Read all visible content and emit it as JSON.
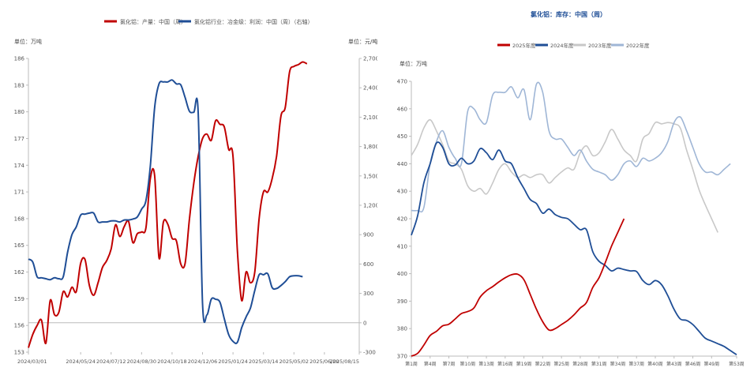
{
  "chart_data": [
    {
      "type": "line",
      "legend": [
        "氯化铝：产量：中国（周）",
        "氯化铝行业：冶金级：利润：中国（周）（右轴）"
      ],
      "legend_position": "top-center",
      "left_unit": "单位：万吨",
      "right_unit": "单位：元/吨",
      "ylim_left": [
        153,
        186
      ],
      "yticks_left": [
        "186",
        "183",
        "180",
        "177",
        "174",
        "171",
        "168",
        "165",
        "162",
        "159",
        "156",
        "153"
      ],
      "ylim_right": [
        -300,
        2700
      ],
      "yticks_right": [
        "2,700",
        "2,400",
        "2,100",
        "1,800",
        "1,500",
        "1,200",
        "900",
        "600",
        "300",
        "0",
        "-300"
      ],
      "xlim": [
        "2024-03-01",
        "2025-08-15"
      ],
      "xticks": [
        "2024/03/01",
        "2024/05/24",
        "2024/07/12",
        "2024/08/30",
        "2024/10/18",
        "2024/12/06",
        "2025/01/24",
        "2025/03/14",
        "2025/05/02",
        "2025/06/20",
        "2025/08/15"
      ],
      "grid": false,
      "colors": {
        "output": "#c00000",
        "profit": "#1f4e96"
      },
      "series": [
        {
          "name": "氯化铝：产量：中国（周）",
          "axis": "left",
          "points": [
            [
              "2024-03-01",
              153.5
            ],
            [
              "2024-03-08",
              155.0
            ],
            [
              "2024-03-15",
              156.0
            ],
            [
              "2024-03-22",
              156.6
            ],
            [
              "2024-03-29",
              154.0
            ],
            [
              "2024-04-05",
              158.8
            ],
            [
              "2024-04-12",
              157.2
            ],
            [
              "2024-04-19",
              157.5
            ],
            [
              "2024-04-26",
              159.8
            ],
            [
              "2024-05-03",
              159.2
            ],
            [
              "2024-05-10",
              160.3
            ],
            [
              "2024-05-17",
              159.8
            ],
            [
              "2024-05-24",
              163.0
            ],
            [
              "2024-05-31",
              163.4
            ],
            [
              "2024-06-07",
              160.5
            ],
            [
              "2024-06-14",
              159.4
            ],
            [
              "2024-06-21",
              160.8
            ],
            [
              "2024-06-28",
              162.5
            ],
            [
              "2024-07-05",
              163.3
            ],
            [
              "2024-07-12",
              164.6
            ],
            [
              "2024-07-19",
              167.3
            ],
            [
              "2024-07-26",
              166.0
            ],
            [
              "2024-08-02",
              167.1
            ],
            [
              "2024-08-09",
              167.7
            ],
            [
              "2024-08-16",
              165.3
            ],
            [
              "2024-08-23",
              166.3
            ],
            [
              "2024-08-30",
              166.5
            ],
            [
              "2024-09-06",
              167.0
            ],
            [
              "2024-09-13",
              172.5
            ],
            [
              "2024-09-20",
              172.8
            ],
            [
              "2024-09-27",
              163.6
            ],
            [
              "2024-10-04",
              167.6
            ],
            [
              "2024-10-11",
              167.4
            ],
            [
              "2024-10-18",
              165.8
            ],
            [
              "2024-10-25",
              165.5
            ],
            [
              "2024-11-01",
              162.9
            ],
            [
              "2024-11-08",
              163.0
            ],
            [
              "2024-11-15",
              168.0
            ],
            [
              "2024-11-22",
              172.0
            ],
            [
              "2024-11-29",
              175.0
            ],
            [
              "2024-12-06",
              177.0
            ],
            [
              "2024-12-13",
              177.5
            ],
            [
              "2024-12-20",
              176.8
            ],
            [
              "2024-12-27",
              179.0
            ],
            [
              "2025-01-03",
              178.6
            ],
            [
              "2025-01-10",
              178.3
            ],
            [
              "2025-01-17",
              175.8
            ],
            [
              "2025-01-24",
              175.0
            ],
            [
              "2025-01-31",
              164.5
            ],
            [
              "2025-02-07",
              158.8
            ],
            [
              "2025-02-14",
              162.0
            ],
            [
              "2025-02-21",
              160.8
            ],
            [
              "2025-02-28",
              162.0
            ],
            [
              "2025-03-07",
              168.0
            ],
            [
              "2025-03-14",
              171.0
            ],
            [
              "2025-03-21",
              171.0
            ],
            [
              "2025-03-28",
              172.5
            ],
            [
              "2025-04-04",
              175.0
            ],
            [
              "2025-04-11",
              179.5
            ],
            [
              "2025-04-18",
              180.5
            ],
            [
              "2025-04-25",
              184.5
            ],
            [
              "2025-05-02",
              185.1
            ],
            [
              "2025-05-09",
              185.3
            ],
            [
              "2025-05-16",
              185.6
            ],
            [
              "2025-05-23",
              185.4
            ]
          ]
        },
        {
          "name": "氯化铝行业：冶金级：利润：中国（周）（右轴）",
          "axis": "right",
          "points": [
            [
              "2024-03-01",
              650
            ],
            [
              "2024-03-08",
              620
            ],
            [
              "2024-03-15",
              470
            ],
            [
              "2024-03-22",
              460
            ],
            [
              "2024-03-29",
              450
            ],
            [
              "2024-04-05",
              440
            ],
            [
              "2024-04-12",
              460
            ],
            [
              "2024-04-19",
              450
            ],
            [
              "2024-04-26",
              470
            ],
            [
              "2024-05-03",
              720
            ],
            [
              "2024-05-10",
              900
            ],
            [
              "2024-05-17",
              980
            ],
            [
              "2024-05-24",
              1100
            ],
            [
              "2024-05-31",
              1110
            ],
            [
              "2024-06-07",
              1120
            ],
            [
              "2024-06-14",
              1120
            ],
            [
              "2024-06-21",
              1030
            ],
            [
              "2024-06-28",
              1030
            ],
            [
              "2024-07-05",
              1030
            ],
            [
              "2024-07-12",
              1040
            ],
            [
              "2024-07-19",
              1040
            ],
            [
              "2024-07-26",
              1030
            ],
            [
              "2024-08-02",
              1050
            ],
            [
              "2024-08-09",
              1050
            ],
            [
              "2024-08-16",
              1060
            ],
            [
              "2024-08-23",
              1080
            ],
            [
              "2024-08-30",
              1160
            ],
            [
              "2024-09-06",
              1250
            ],
            [
              "2024-09-13",
              1600
            ],
            [
              "2024-09-20",
              2200
            ],
            [
              "2024-09-27",
              2440
            ],
            [
              "2024-10-04",
              2460
            ],
            [
              "2024-10-11",
              2460
            ],
            [
              "2024-10-18",
              2480
            ],
            [
              "2024-10-25",
              2440
            ],
            [
              "2024-11-01",
              2430
            ],
            [
              "2024-11-08",
              2300
            ],
            [
              "2024-11-15",
              2160
            ],
            [
              "2024-11-22",
              2150
            ],
            [
              "2024-11-29",
              2150
            ],
            [
              "2024-12-06",
              200
            ],
            [
              "2024-12-13",
              80
            ],
            [
              "2024-12-20",
              240
            ],
            [
              "2024-12-27",
              240
            ],
            [
              "2025-01-03",
              210
            ],
            [
              "2025-01-10",
              40
            ],
            [
              "2025-01-17",
              -120
            ],
            [
              "2025-01-24",
              -190
            ],
            [
              "2025-01-31",
              -200
            ],
            [
              "2025-02-07",
              -50
            ],
            [
              "2025-02-14",
              60
            ],
            [
              "2025-02-21",
              150
            ],
            [
              "2025-02-28",
              330
            ],
            [
              "2025-03-07",
              490
            ],
            [
              "2025-03-14",
              490
            ],
            [
              "2025-03-21",
              500
            ],
            [
              "2025-03-28",
              360
            ],
            [
              "2025-04-04",
              350
            ],
            [
              "2025-04-11",
              380
            ],
            [
              "2025-04-18",
              420
            ],
            [
              "2025-04-25",
              470
            ],
            [
              "2025-05-02",
              480
            ],
            [
              "2025-05-09",
              480
            ],
            [
              "2025-05-16",
              470
            ]
          ]
        }
      ]
    },
    {
      "type": "line",
      "title": "氯化铝：库存：中国（周）",
      "unit": "单位：万吨",
      "legend": [
        "2025年度",
        "2024年度",
        "2023年度",
        "2022年度"
      ],
      "legend_position": "top-center",
      "ylim": [
        370,
        470
      ],
      "yticks": [
        "470",
        "460",
        "450",
        "440",
        "430",
        "420",
        "410",
        "400",
        "390",
        "380",
        "370"
      ],
      "xticks": [
        "第1周",
        "第4周",
        "第7周",
        "第10周",
        "第13周",
        "第16周",
        "第19周",
        "第22周",
        "第25周",
        "第28周",
        "第31周",
        "第34周",
        "第37周",
        "第40周",
        "第43周",
        "第46周",
        "第49周",
        "第53周"
      ],
      "grid": false,
      "colors": {
        "2025": "#c00000",
        "2024": "#1f4e96",
        "2023": "#c8c8c8",
        "2022": "#9fb6d6"
      },
      "series": [
        {
          "name": "2025年度",
          "values": [
            370.0,
            371.0,
            374.0,
            377.5,
            379.0,
            381.0,
            381.6,
            383.5,
            385.5,
            386.2,
            387.5,
            391.5,
            393.8,
            395.3,
            397.0,
            398.5,
            399.6,
            399.8,
            397.8,
            392.5,
            387.0,
            382.5,
            379.5,
            380.0,
            381.5,
            383.0,
            385.0,
            387.5,
            389.5,
            395.0,
            398.5,
            404.0,
            410.0,
            415.0,
            420.0
          ]
        },
        {
          "name": "2024年度",
          "values": [
            414.0,
            421.0,
            433.0,
            440.0,
            447.5,
            446.0,
            440.0,
            439.5,
            442.0,
            440.0,
            441.0,
            445.5,
            444.0,
            441.5,
            445.0,
            441.0,
            440.0,
            435.0,
            431.0,
            427.0,
            425.5,
            422.0,
            423.5,
            421.5,
            420.5,
            420.0,
            418.0,
            416.0,
            416.0,
            408.0,
            404.5,
            403.0,
            401.0,
            402.0,
            401.5,
            401.0,
            400.8,
            397.5,
            396.0,
            397.5,
            396.0,
            392.0,
            387.0,
            383.5,
            383.0,
            381.5,
            379.0,
            376.5,
            375.5,
            374.5,
            373.5,
            372.0,
            370.5
          ]
        },
        {
          "name": "2023年度",
          "values": [
            443.0,
            447.0,
            453.0,
            456.0,
            452.0,
            447.0,
            441.0,
            440.0,
            438.0,
            432.0,
            430.0,
            431.0,
            429.0,
            433.0,
            438.0,
            440.0,
            437.0,
            435.0,
            436.0,
            435.0,
            436.0,
            436.0,
            433.0,
            435.0,
            437.0,
            438.5,
            438.0,
            444.0,
            446.5,
            443.0,
            444.0,
            448.0,
            452.5,
            449.0,
            445.0,
            443.0,
            441.0,
            449.0,
            451.0,
            455.0,
            454.5,
            455.0,
            454.5,
            453.0,
            445.0,
            438.0,
            430.5,
            425.0,
            420.0,
            415.0
          ]
        },
        {
          "name": "2022年度",
          "values": [
            423.0,
            423.0,
            424.0,
            440.0,
            448.0,
            452.0,
            446.0,
            442.0,
            440.0,
            459.0,
            460.0,
            456.0,
            455.0,
            465.0,
            466.0,
            466.0,
            468.0,
            464.0,
            467.0,
            456.0,
            469.0,
            466.0,
            452.0,
            449.0,
            449.0,
            446.0,
            443.0,
            445.0,
            441.0,
            438.0,
            437.0,
            436.0,
            434.0,
            436.0,
            440.0,
            441.0,
            439.0,
            442.0,
            441.0,
            442.0,
            444.0,
            448.0,
            455.0,
            457.0,
            452.0,
            446.0,
            440.0,
            437.0,
            437.0,
            436.0,
            438.0,
            440.0
          ]
        }
      ]
    }
  ]
}
